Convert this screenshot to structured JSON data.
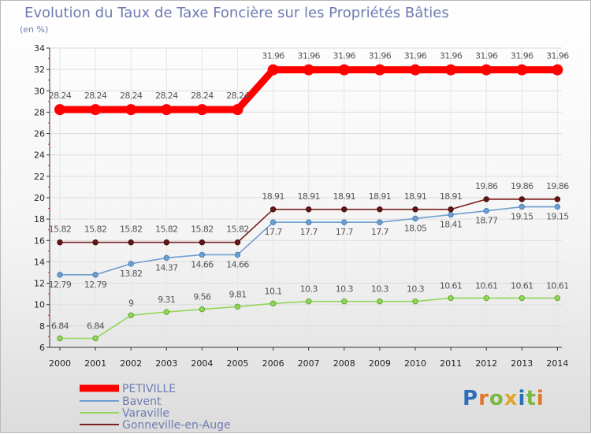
{
  "title": "Evolution du Taux de Taxe Foncière sur les Propriétés Bâties",
  "unit": "(en %)",
  "logo": "Proxiti",
  "chart_data": {
    "type": "line",
    "title": "Evolution du Taux de Taxe Foncière sur les Propriétés Bâties",
    "ylabel": "(en %)",
    "xlabel": "",
    "ylim": [
      6,
      34
    ],
    "yticks": [
      6,
      8,
      10,
      12,
      14,
      16,
      18,
      20,
      22,
      24,
      26,
      28,
      30,
      32,
      34
    ],
    "grid": true,
    "legend_position": "bottom-left",
    "categories": [
      "2000",
      "2001",
      "2002",
      "2003",
      "2004",
      "2005",
      "2006",
      "2007",
      "2008",
      "2009",
      "2010",
      "2011",
      "2012",
      "2013",
      "2014"
    ],
    "series": [
      {
        "name": "PETIVILLE",
        "color": "#ff0000",
        "values": [
          28.24,
          28.24,
          28.24,
          28.24,
          28.24,
          28.24,
          31.96,
          31.96,
          31.96,
          31.96,
          31.96,
          31.96,
          31.96,
          31.96,
          31.96
        ]
      },
      {
        "name": "Bavent",
        "color": "#6e9fd0",
        "values": [
          12.79,
          12.79,
          13.82,
          14.37,
          14.66,
          14.66,
          17.7,
          17.7,
          17.7,
          17.7,
          18.05,
          18.41,
          18.77,
          19.15,
          19.15
        ]
      },
      {
        "name": "Varaville",
        "color": "#94d65a",
        "values": [
          6.84,
          6.84,
          9,
          9.31,
          9.56,
          9.81,
          10.1,
          10.3,
          10.3,
          10.3,
          10.3,
          10.61,
          10.61,
          10.61,
          10.61
        ]
      },
      {
        "name": "Gonneville-en-Auge",
        "color": "#7a1f1f",
        "values": [
          15.82,
          15.82,
          15.82,
          15.82,
          15.82,
          15.82,
          18.91,
          18.91,
          18.91,
          18.91,
          18.91,
          18.91,
          19.86,
          19.86,
          19.86
        ]
      }
    ]
  }
}
